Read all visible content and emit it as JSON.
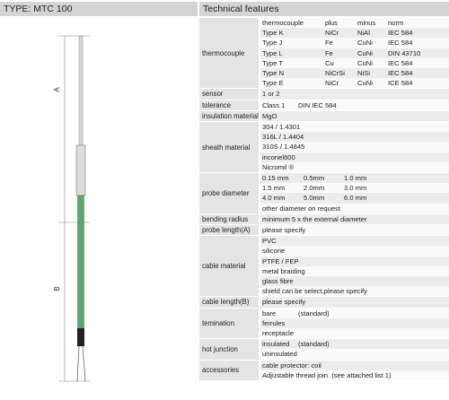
{
  "header": {
    "type_title": "TYPE: MTC 100",
    "table_title": "Technical features"
  },
  "drawing": {
    "dim_a": "A",
    "dim_b": "B"
  },
  "table": {
    "rows": [
      {
        "label": "thermocouple",
        "lines": [
          [
            "thermocouple",
            "plus",
            "minus",
            "norm"
          ],
          [
            "Type K",
            "NiCr",
            "NiAl",
            "IEC 584"
          ],
          [
            "Type J",
            "Fe",
            "CuNi",
            "IEC 584"
          ],
          [
            "Type L",
            "Fe",
            "CuNi",
            "DIN 43710"
          ],
          [
            "Type T",
            "Cu",
            "CuNi",
            "IEC 584"
          ],
          [
            "Type N",
            "NiCrSi",
            "NiSi",
            "IEC 584"
          ],
          [
            "Type E",
            "NiCr",
            "CuNi",
            "ICE 584"
          ]
        ]
      },
      {
        "label": "sensor",
        "lines": [
          [
            "1 or 2"
          ]
        ]
      },
      {
        "label": "tolerance",
        "lines": [
          [
            "Class 1",
            "DIN IEC 584"
          ]
        ]
      },
      {
        "label": "insulation material",
        "lines": [
          [
            "MgO"
          ]
        ]
      },
      {
        "label": "sheath material",
        "lines": [
          [
            "304 / 1.4301"
          ],
          [
            "316L / 1.4404"
          ],
          [
            "310S / 1.4845"
          ],
          [
            "inconel600"
          ],
          [
            "Nicromil ®"
          ]
        ]
      },
      {
        "label": "probe diameter",
        "lines": [
          [
            "0.15 mm",
            "0.5mm",
            "1.0 mm"
          ],
          [
            "1.5 mm",
            "2.0mm",
            "3.0 mm"
          ],
          [
            "4.0 mm",
            "5.0mm",
            "6.0 mm"
          ],
          [
            "other diameter on request"
          ]
        ]
      },
      {
        "label": "bending radius",
        "lines": [
          [
            "minimum 5 x the external diameter"
          ]
        ]
      },
      {
        "label": "probe length(A)",
        "lines": [
          [
            "please specify"
          ]
        ]
      },
      {
        "label": "cable material",
        "lines": [
          [
            "PVC"
          ],
          [
            "silicone"
          ],
          [
            "PTFE / FEP"
          ],
          [
            "metal braiding"
          ],
          [
            "glass fibre"
          ],
          [
            "shield can be select,please specify"
          ]
        ]
      },
      {
        "label": "cable length(B)",
        "lines": [
          [
            "please specify"
          ]
        ]
      },
      {
        "label": "temination",
        "lines": [
          [
            "bare",
            "(standard)"
          ],
          [
            "ferrules"
          ],
          [
            "receptacle"
          ]
        ]
      },
      {
        "label": "hot junction",
        "lines": [
          [
            "insulated",
            "(standard)"
          ],
          [
            "uninsulated"
          ]
        ]
      },
      {
        "label": "accessories",
        "lines": [
          [
            "cable protector: coil"
          ],
          [
            "Adjustable thread join  (see attached list 1)"
          ]
        ]
      }
    ]
  }
}
